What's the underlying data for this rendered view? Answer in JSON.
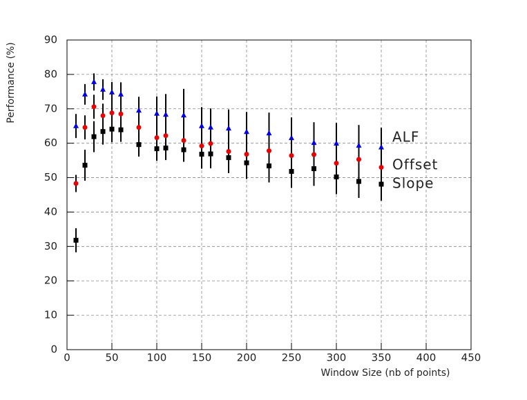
{
  "chart_data": {
    "type": "scatter",
    "x_label": "Window Size (nb of points)",
    "y_label": "Performance (%)",
    "x": [
      10,
      20,
      30,
      40,
      50,
      60,
      80,
      100,
      110,
      130,
      150,
      160,
      180,
      200,
      225,
      250,
      275,
      300,
      325,
      350
    ],
    "series": [
      {
        "name": "ALF",
        "color": "#0000ee",
        "marker": "triangle",
        "values": [
          65,
          74.2,
          77.8,
          75.6,
          74.8,
          74.2,
          69.5,
          68.6,
          68.3,
          68.1,
          65,
          64.6,
          64.3,
          63.3,
          62.9,
          61.5,
          60.1,
          59.9,
          59.3,
          58.8
        ],
        "errors": [
          3.5,
          3,
          2.5,
          3,
          3,
          3.5,
          4,
          5,
          6,
          7.7,
          5.5,
          5.5,
          5.5,
          5.8,
          6,
          6,
          6,
          6,
          6,
          5.7
        ]
      },
      {
        "name": "Offset",
        "color": "#ee0000",
        "marker": "circle",
        "values": [
          48.3,
          64.6,
          70.6,
          68,
          68.8,
          68.5,
          64.6,
          61.6,
          62.2,
          60.8,
          59.2,
          59.9,
          57.6,
          56.8,
          57.8,
          56.4,
          56.7,
          54.2,
          55.3,
          53
        ],
        "errors": [
          2.5,
          3.5,
          3.5,
          3.5,
          3.5,
          3.5,
          3.5,
          4,
          4,
          4,
          4.5,
          4.5,
          4.5,
          4.7,
          4.8,
          5,
          5,
          5,
          5,
          5
        ]
      },
      {
        "name": "Slope",
        "color": "#000000",
        "marker": "square",
        "values": [
          31.8,
          53.6,
          61.9,
          63.4,
          64.1,
          63.9,
          59.6,
          58.4,
          58.6,
          58.1,
          56.8,
          56.9,
          55.8,
          54.3,
          53.4,
          51.8,
          52.6,
          50.2,
          48.9,
          48.1
        ],
        "errors": [
          3.5,
          4.5,
          4.5,
          3.8,
          3.8,
          3.5,
          3.5,
          3.5,
          3.5,
          3.5,
          4.2,
          4.2,
          4.5,
          4.7,
          4.8,
          4.8,
          5,
          5,
          4.8,
          4.8
        ]
      }
    ],
    "xlim": [
      0,
      450
    ],
    "xticks": [
      0,
      50,
      100,
      150,
      200,
      250,
      300,
      350,
      400,
      450
    ],
    "ylim": [
      0,
      90
    ],
    "yticks": [
      0,
      10,
      20,
      30,
      40,
      50,
      60,
      70,
      80,
      90
    ],
    "grid": true
  }
}
